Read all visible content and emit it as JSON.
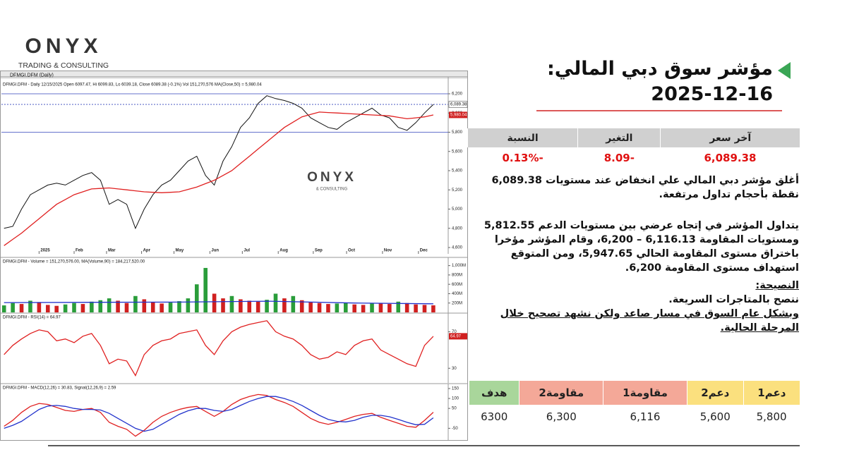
{
  "logo": {
    "name": "ONYX",
    "tagline": "TRADING & CONSULTING"
  },
  "header": {
    "title": "مؤشر سوق دبي المالي:",
    "date": "2025-12-16"
  },
  "summary": {
    "headers": [
      "آخر سعر",
      "التغير",
      "النسبة"
    ],
    "values": [
      "6,089.38",
      "-8.09",
      "-0.13%"
    ]
  },
  "paragraphs": [
    "أغلق مؤشر دبي المالي علي انخفاض عند مستويات 6,089.38 نقطة بأحجام تداول مرتفعة.",
    "يتداول المؤشر في إتجاه عرضي بين مستويات الدعم 5,812.55 ومستويات المقاومة 6,116.13 – 6,200، وقام المؤشر مؤخرا باختراق مستوى المقاومة الحالي 5,947.65، ومن المتوقع استهداف مستوى المقاومة 6,200."
  ],
  "advice": {
    "heading": "النصيحة:",
    "lines": [
      "ننصح بالمتاجرات السريعة.",
      "وبشكل عام السوق في مسار صاعد ولكن نشهد تصحيح خلال المرحلة الحالية."
    ]
  },
  "levels": {
    "headers": [
      "دعم1",
      "دعم2",
      "مقاومة1",
      "مقاومة2",
      "هدف"
    ],
    "values": [
      "5,800",
      "5,600",
      "6,116",
      "6,300",
      "6300"
    ]
  },
  "chart_tab": "DFMGI.DFM (Daily)",
  "watermark": {
    "name": "ONYX",
    "tagline": "& CONSULTING"
  },
  "chart_data": [
    {
      "type": "line",
      "title": "DFMGI.DFM - Daily 12/15/2025 Open 6097.47, Hi 6099.83, Lo 6039.18, Close 6089.38 (-0.1%) Vol 151,270,576 MA(Close,50) = 5,980.04",
      "xlim": [
        -0.3,
        50.7
      ],
      "xticks": [
        {
          "value": 4,
          "label": "2025"
        },
        {
          "value": 8,
          "label": "Feb"
        },
        {
          "value": 11.7,
          "label": "Mar"
        },
        {
          "value": 15.7,
          "label": "Apr"
        },
        {
          "value": 19.4,
          "label": "May"
        },
        {
          "value": 23.5,
          "label": "Jun"
        },
        {
          "value": 27.2,
          "label": "Jul"
        },
        {
          "value": 31.3,
          "label": "Aug"
        },
        {
          "value": 35.3,
          "label": "Sep"
        },
        {
          "value": 39.1,
          "label": "Oct"
        },
        {
          "value": 43.2,
          "label": "Nov"
        },
        {
          "value": 47.3,
          "label": "Dec"
        }
      ],
      "ylim": [
        4534,
        6354
      ],
      "yticks": [
        {
          "value": 4600,
          "label": "4,600"
        },
        {
          "value": 4800,
          "label": "4,800"
        },
        {
          "value": 5000,
          "label": "5,000"
        },
        {
          "value": 5200,
          "label": "5,200"
        },
        {
          "value": 5400,
          "label": "5,400"
        },
        {
          "value": 5600,
          "label": "5,600"
        },
        {
          "value": 5800,
          "label": "5,800"
        },
        {
          "value": 6000,
          "label": "6,000"
        },
        {
          "value": 6200,
          "label": "6,200"
        }
      ],
      "hlines": [
        6200,
        6089.38,
        5800
      ],
      "series": [
        {
          "name": "Close",
          "color": "#111111",
          "last_label": "6,089.38",
          "values": [
            4800,
            4820,
            5000,
            5150,
            5200,
            5250,
            5270,
            5250,
            5300,
            5350,
            5380,
            5300,
            5050,
            5100,
            5050,
            4800,
            5000,
            5150,
            5250,
            5300,
            5400,
            5500,
            5550,
            5350,
            5250,
            5500,
            5650,
            5850,
            5950,
            6100,
            6180,
            6150,
            6130,
            6100,
            6050,
            5950,
            5900,
            5850,
            5830,
            5900,
            5950,
            6000,
            6050,
            5980,
            5950,
            5850,
            5820,
            5900,
            6000,
            6089.38
          ]
        },
        {
          "name": "MA(Close,50)",
          "color": "#e02020",
          "last_label": "5,980.04",
          "values": [
            4620,
            4685,
            4750,
            4825,
            4900,
            4975,
            5050,
            5100,
            5150,
            5180,
            5210,
            5215,
            5220,
            5210,
            5200,
            5190,
            5180,
            5175,
            5170,
            5175,
            5180,
            5205,
            5230,
            5265,
            5300,
            5350,
            5400,
            5475,
            5550,
            5625,
            5700,
            5775,
            5850,
            5905,
            5960,
            5985,
            6010,
            6005,
            6000,
            5995,
            5990,
            5985,
            5980,
            5975,
            5970,
            5955,
            5940,
            5950,
            5960,
            5980.04
          ]
        }
      ]
    },
    {
      "type": "bar",
      "title": "DFMGI.DFM - Volume = 151,270,576.00, MA(Volume,90) = 184,217,520.00",
      "xlim": [
        -0.3,
        50.7
      ],
      "ylim": [
        -30,
        1130
      ],
      "yticks": [
        {
          "value": 200,
          "label": "200M"
        },
        {
          "value": 400,
          "label": "400M"
        },
        {
          "value": 600,
          "label": "600M"
        },
        {
          "value": 800,
          "label": "800M"
        },
        {
          "value": 1000,
          "label": "1,000M"
        }
      ],
      "series": [
        {
          "name": "Volume",
          "color": "#2a9d3a",
          "values": [
            150,
            200,
            180,
            250,
            220,
            160,
            140,
            170,
            200,
            180,
            230,
            260,
            300,
            250,
            200,
            350,
            280,
            220,
            190,
            210,
            240,
            300,
            600,
            950,
            400,
            300,
            350,
            280,
            250,
            230,
            270,
            400,
            300,
            350,
            260,
            220,
            200,
            180,
            190,
            210,
            170,
            160,
            200,
            190,
            180,
            230,
            200,
            170,
            160,
            151.27
          ]
        },
        {
          "name": "MA(Volume,90)",
          "color": "#2233cc",
          "x": [
            0,
            10,
            20,
            30,
            40,
            49
          ],
          "values": [
            210,
            215,
            220,
            240,
            200,
            184.22
          ]
        }
      ]
    },
    {
      "type": "line",
      "title": "DFMGI.DFM - RSI(14) = 64.97",
      "xlim": [
        -0.3,
        50.7
      ],
      "ylim": [
        14,
        88
      ],
      "yticks": [
        30,
        70
      ],
      "series": [
        {
          "name": "RSI(14)",
          "color": "#e02020",
          "last_label": "64.97",
          "values": [
            45,
            55,
            62,
            68,
            72,
            70,
            60,
            62,
            58,
            65,
            68,
            55,
            35,
            40,
            38,
            22,
            45,
            55,
            60,
            62,
            68,
            70,
            72,
            55,
            45,
            60,
            70,
            75,
            78,
            80,
            82,
            70,
            65,
            62,
            55,
            45,
            40,
            42,
            48,
            45,
            55,
            60,
            62,
            50,
            45,
            40,
            35,
            32,
            55,
            64.97
          ]
        }
      ]
    },
    {
      "type": "line",
      "title": "DFMGI.DFM - MACD(12,26) = 30.83, Signal(12,26,9) = 2.59",
      "xlim": [
        -0.3,
        50.7
      ],
      "ylim": [
        -109,
        164
      ],
      "yticks": [
        -50,
        50,
        100,
        150
      ],
      "series": [
        {
          "name": "MACD",
          "color": "#e02020",
          "values": [
            -40,
            -10,
            30,
            60,
            75,
            70,
            55,
            40,
            35,
            45,
            50,
            30,
            -20,
            -40,
            -55,
            -90,
            -60,
            -20,
            10,
            30,
            45,
            55,
            60,
            35,
            10,
            35,
            70,
            95,
            110,
            120,
            115,
            95,
            80,
            60,
            30,
            0,
            -20,
            -30,
            -20,
            -5,
            10,
            20,
            25,
            5,
            -10,
            -25,
            -40,
            -45,
            -10,
            30.83
          ]
        },
        {
          "name": "Signal",
          "color": "#2233cc",
          "values": [
            -50,
            -35,
            -15,
            15,
            45,
            62,
            65,
            60,
            50,
            45,
            45,
            42,
            25,
            0,
            -25,
            -50,
            -65,
            -55,
            -30,
            -5,
            20,
            38,
            50,
            50,
            40,
            35,
            45,
            65,
            85,
            100,
            110,
            110,
            100,
            85,
            65,
            40,
            15,
            -5,
            -15,
            -18,
            -10,
            5,
            15,
            15,
            8,
            -5,
            -20,
            -32,
            -30,
            2.59
          ]
        }
      ]
    }
  ]
}
